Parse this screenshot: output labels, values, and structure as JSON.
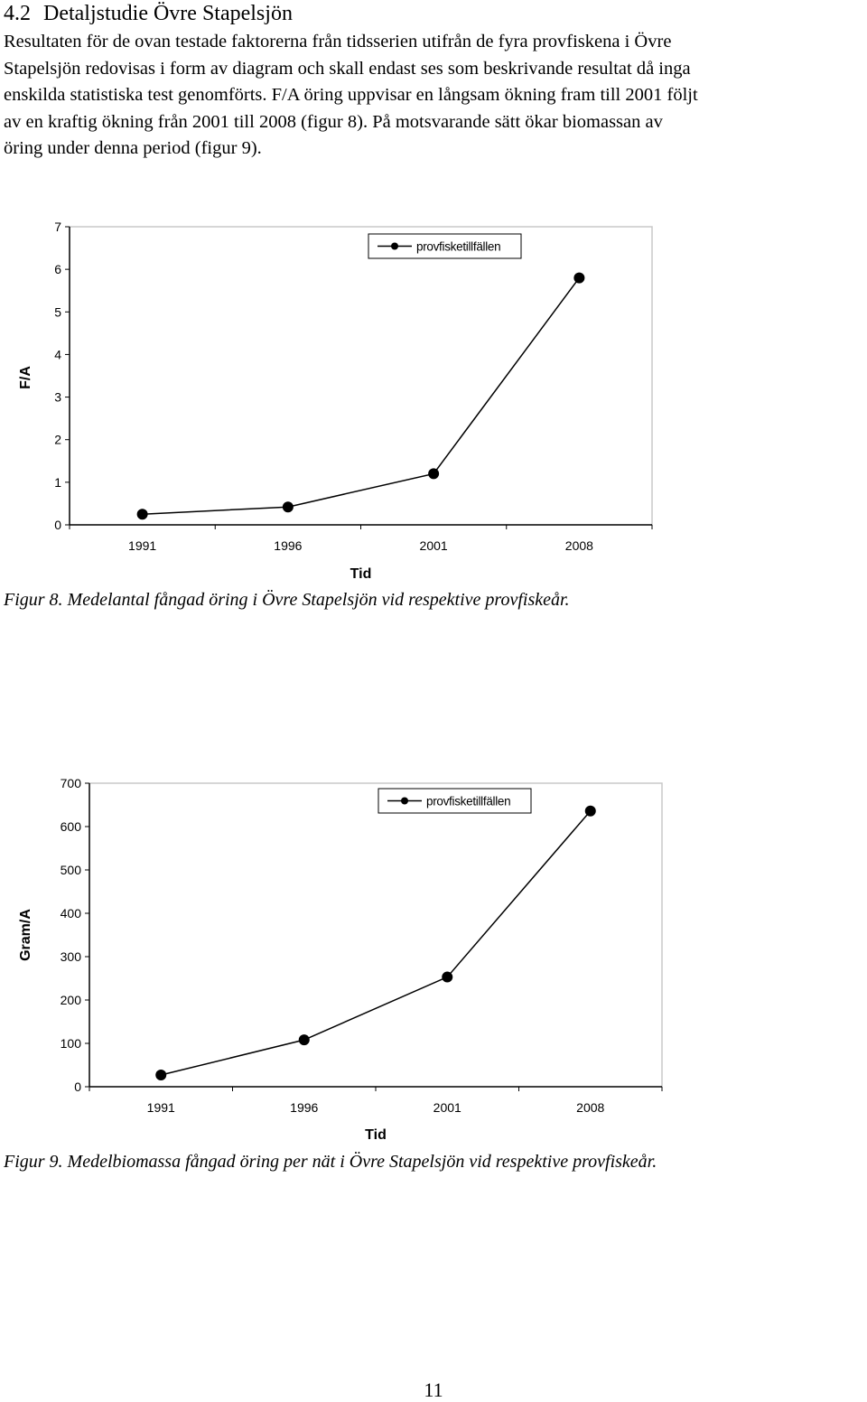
{
  "section": {
    "number": "4.2",
    "title": "Detaljstudie Övre Stapelsjön"
  },
  "paragraph_lines": [
    "Resultaten för de ovan testade faktorerna från tidsserien utifrån de fyra provfiskena i Övre",
    "Stapelsjön redovisas i form av diagram och skall endast ses som beskrivande resultat då inga",
    "enskilda statistiska test genomförts. F/A öring uppvisar en långsam ökning fram till 2001 följt",
    "av en kraftig ökning från 2001 till 2008 (figur 8).  På motsvarande sätt ökar biomassan av",
    "öring under denna period (figur 9)."
  ],
  "chart_data": [
    {
      "type": "line",
      "categories": [
        "1991",
        "1996",
        "2001",
        "2008"
      ],
      "series": [
        {
          "name": "provfisketillfällen",
          "values": [
            0.25,
            0.42,
            1.2,
            5.8
          ]
        }
      ],
      "xlabel": "Tid",
      "ylabel": "F/A",
      "ylim": [
        0,
        7
      ],
      "yticks": [
        "0",
        "1",
        "2",
        "3",
        "4",
        "5",
        "6",
        "7"
      ],
      "legend": "top-center",
      "grid": false,
      "line_color": "#000000"
    },
    {
      "type": "line",
      "categories": [
        "1991",
        "1996",
        "2001",
        "2008"
      ],
      "series": [
        {
          "name": "provfisketillfällen",
          "values": [
            27,
            108,
            253,
            636
          ]
        }
      ],
      "xlabel": "Tid",
      "ylabel": "Gram/A",
      "ylim": [
        0,
        700
      ],
      "yticks": [
        "0",
        "100",
        "200",
        "300",
        "400",
        "500",
        "600",
        "700"
      ],
      "legend": "top-center",
      "grid": false,
      "line_color": "#000000"
    }
  ],
  "captions": {
    "fig8": "Figur 8. Medelantal fångad öring i Övre Stapelsjön vid respektive provfiskeår.",
    "fig9": "Figur 9. Medelbiomassa fångad öring per nät i Övre Stapelsjön vid respektive provfiskeår."
  },
  "page_number": "11"
}
